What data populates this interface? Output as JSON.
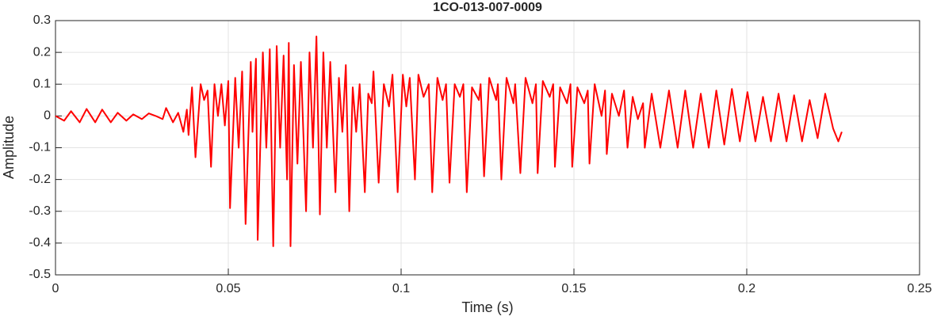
{
  "chart_data": {
    "type": "line",
    "title": "1CO-013-007-0009",
    "xlabel": "Time (s)",
    "ylabel": "Amplitude",
    "color": "#ff0000",
    "grid": true,
    "xlim": [
      0,
      0.25
    ],
    "ylim": [
      -0.5,
      0.3
    ],
    "xticks": [
      0,
      0.05,
      0.1,
      0.15,
      0.2,
      0.25
    ],
    "yticks": [
      -0.5,
      -0.4,
      -0.3,
      -0.2,
      -0.1,
      0,
      0.1,
      0.2,
      0.3
    ],
    "x": [
      0,
      0.0025,
      0.0045,
      0.007,
      0.009,
      0.0115,
      0.0135,
      0.016,
      0.018,
      0.0205,
      0.0225,
      0.025,
      0.027,
      0.029,
      0.031,
      0.032,
      0.034,
      0.0355,
      0.037,
      0.038,
      0.0385,
      0.0395,
      0.0405,
      0.042,
      0.043,
      0.044,
      0.045,
      0.046,
      0.047,
      0.048,
      0.049,
      0.05,
      0.0505,
      0.052,
      0.053,
      0.054,
      0.055,
      0.0565,
      0.057,
      0.058,
      0.0585,
      0.06,
      0.061,
      0.062,
      0.063,
      0.064,
      0.065,
      0.066,
      0.067,
      0.0675,
      0.068,
      0.069,
      0.07,
      0.071,
      0.0725,
      0.0735,
      0.0745,
      0.0755,
      0.0765,
      0.0775,
      0.0785,
      0.0795,
      0.081,
      0.082,
      0.083,
      0.084,
      0.085,
      0.086,
      0.087,
      0.088,
      0.0895,
      0.0905,
      0.0915,
      0.092,
      0.0935,
      0.095,
      0.0965,
      0.0975,
      0.099,
      0.1005,
      0.1015,
      0.1025,
      0.104,
      0.105,
      0.1065,
      0.108,
      0.109,
      0.1105,
      0.112,
      0.113,
      0.114,
      0.1155,
      0.117,
      0.118,
      0.119,
      0.1205,
      0.1225,
      0.123,
      0.124,
      0.1255,
      0.1275,
      0.128,
      0.129,
      0.1305,
      0.1325,
      0.133,
      0.1345,
      0.136,
      0.138,
      0.139,
      0.1395,
      0.141,
      0.143,
      0.144,
      0.1445,
      0.146,
      0.148,
      0.149,
      0.1495,
      0.151,
      0.153,
      0.154,
      0.1545,
      0.156,
      0.158,
      0.159,
      0.1595,
      0.161,
      0.163,
      0.1645,
      0.1655,
      0.167,
      0.1685,
      0.17,
      0.1705,
      0.1725,
      0.175,
      0.1775,
      0.18,
      0.1822,
      0.1845,
      0.1867,
      0.189,
      0.1912,
      0.1935,
      0.1957,
      0.198,
      0.2002,
      0.2025,
      0.2047,
      0.207,
      0.2092,
      0.2115,
      0.2137,
      0.216,
      0.2182,
      0.2205,
      0.2227,
      0.225,
      0.2265,
      0.2275
    ],
    "values": [
      0,
      -0.015,
      0.015,
      -0.02,
      0.022,
      -0.02,
      0.02,
      -0.02,
      0.01,
      -0.015,
      0.005,
      -0.01,
      0.008,
      0,
      -0.01,
      0.025,
      -0.02,
      0.01,
      -0.05,
      0.02,
      -0.06,
      0.09,
      -0.13,
      0.1,
      0.05,
      0.08,
      -0.16,
      0.1,
      0,
      0.1,
      -0.03,
      0.11,
      -0.29,
      0.12,
      -0.1,
      0.14,
      -0.34,
      0.17,
      -0.05,
      0.18,
      -0.39,
      0.2,
      -0.1,
      0.21,
      -0.41,
      0.22,
      -0.1,
      0.19,
      -0.2,
      0.23,
      -0.41,
      0.16,
      -0.15,
      0.17,
      -0.3,
      0.2,
      -0.1,
      0.25,
      -0.31,
      0.2,
      -0.1,
      0.17,
      -0.24,
      0.12,
      -0.05,
      0.16,
      -0.3,
      0.09,
      -0.05,
      0.1,
      -0.24,
      0.07,
      0.04,
      0.14,
      -0.21,
      0.1,
      0.03,
      0.13,
      -0.24,
      0.13,
      0.03,
      0.12,
      -0.2,
      0.13,
      0.06,
      0.1,
      -0.24,
      0.12,
      0.05,
      0.1,
      -0.21,
      0.1,
      0.06,
      0.1,
      -0.24,
      0.09,
      0.05,
      0.1,
      -0.19,
      0.12,
      0.05,
      0.1,
      -0.2,
      0.12,
      0.04,
      0.1,
      -0.18,
      0.12,
      0.04,
      0.1,
      -0.18,
      0.11,
      0.06,
      0.1,
      -0.16,
      0.09,
      0.04,
      0.1,
      -0.16,
      0.09,
      0.04,
      0.08,
      -0.15,
      0.1,
      0,
      0.08,
      -0.12,
      0.07,
      0,
      0.08,
      -0.1,
      0.06,
      -0.01,
      0.04,
      -0.1,
      0.07,
      -0.1,
      0.08,
      -0.1,
      0.08,
      -0.1,
      0.07,
      -0.1,
      0.08,
      -0.09,
      0.085,
      -0.08,
      0.075,
      -0.08,
      0.06,
      -0.08,
      0.07,
      -0.08,
      0.065,
      -0.08,
      0.05,
      -0.07,
      0.07,
      -0.04,
      -0.08,
      -0.05
    ]
  }
}
